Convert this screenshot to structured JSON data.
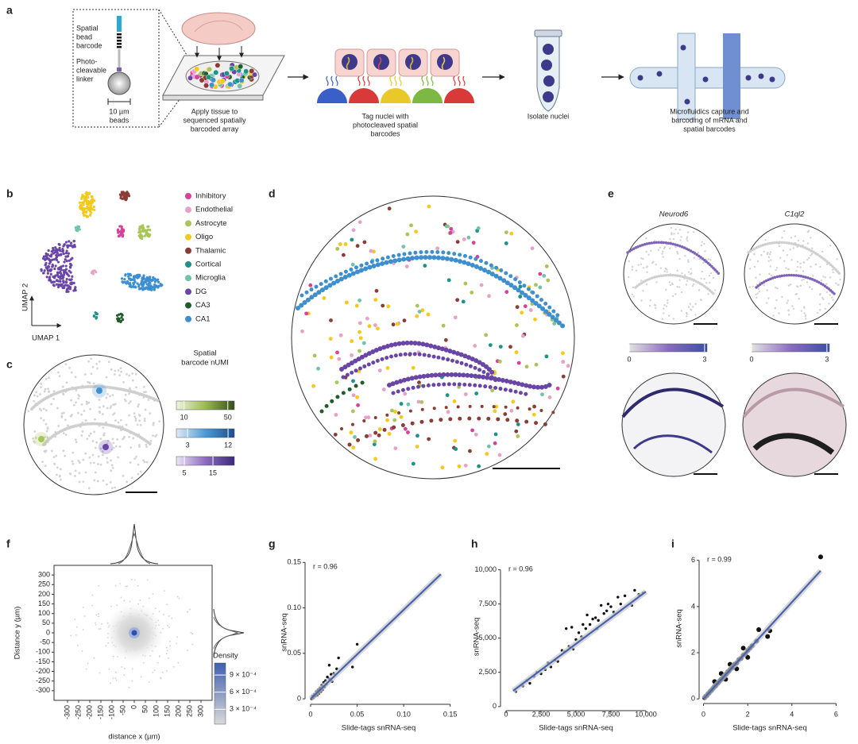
{
  "panel_labels": [
    "a",
    "b",
    "c",
    "d",
    "e",
    "f",
    "g",
    "h",
    "i"
  ],
  "schematic": {
    "bead_barcode": [
      "Spatial",
      "bead",
      "barcode"
    ],
    "linker": [
      "Photo-",
      "cleavable",
      "linker"
    ],
    "bead_size": [
      "10 µm",
      "beads"
    ],
    "steps": [
      [
        "Apply tissue to",
        "sequenced spatially",
        "barcoded array"
      ],
      [
        "Tag nuclei with",
        "photocleaved spatial",
        "barcodes"
      ],
      [
        "Isolate nuclei"
      ],
      [
        "Microfluidics capture and",
        "barcoding of mRNA and",
        "spatial barcodes"
      ]
    ]
  },
  "umap": {
    "x_label": "UMAP 1",
    "y_label": "UMAP 2",
    "legend": [
      {
        "name": "Inhibitory",
        "color": "#d6419a"
      },
      {
        "name": "Endothelial",
        "color": "#e7a1c8"
      },
      {
        "name": "Astrocyte",
        "color": "#a9c55a"
      },
      {
        "name": "Oligo",
        "color": "#f4c91b"
      },
      {
        "name": "Thalamic",
        "color": "#8b3d35"
      },
      {
        "name": "Cortical",
        "color": "#1b938a"
      },
      {
        "name": "Microglia",
        "color": "#6fc3a8"
      },
      {
        "name": "DG",
        "color": "#6a45a8"
      },
      {
        "name": "CA3",
        "color": "#1f5e2b"
      },
      {
        "name": "CA1",
        "color": "#3d8fd0"
      }
    ]
  },
  "spatial_c": {
    "title": [
      "Spatial",
      "barcode nUMI"
    ],
    "colorbars": [
      {
        "colors": [
          "#eef3dc",
          "#9bbb52",
          "#34501a"
        ],
        "lim": [
          3,
          56
        ],
        "ticks": [
          10,
          50
        ]
      },
      {
        "colors": [
          "#dfeaf6",
          "#4d9ad6",
          "#1a4f8c"
        ],
        "lim": [
          0.5,
          13.4
        ],
        "ticks": [
          3,
          12
        ]
      },
      {
        "colors": [
          "#ebe5f3",
          "#8e6cc0",
          "#3d2a7a"
        ],
        "lim": [
          2.2,
          22.5
        ],
        "ticks": [
          5,
          15
        ]
      }
    ]
  },
  "panel_e": {
    "genes": [
      "Neurod6",
      "C1ql2"
    ],
    "colorbars": [
      {
        "colors": [
          "#e2e2e2",
          "#8a6cc0",
          "#3a4fa8"
        ],
        "lim": [
          0,
          3.1
        ],
        "ticks": [
          0,
          3
        ]
      },
      {
        "colors": [
          "#e2e2e2",
          "#8a6cc0",
          "#3a4fa8"
        ],
        "lim": [
          0,
          3.1
        ],
        "ticks": [
          0,
          3
        ]
      }
    ]
  },
  "chart_data": [
    {
      "type": "density",
      "x_label": "distance x (µm)",
      "y_label": "Distance y (µm)",
      "xlim": [
        -350,
        350
      ],
      "ylim": [
        -350,
        350
      ],
      "xticks": [
        -300,
        -250,
        -200,
        -150,
        -100,
        -50,
        0,
        50,
        100,
        150,
        200,
        250,
        300
      ],
      "yticks": [
        300,
        250,
        200,
        150,
        100,
        50,
        0,
        -50,
        -100,
        -150,
        -200,
        -250,
        -300
      ],
      "colorbar": {
        "title": "Density",
        "colors": [
          "#d9d9d9",
          "#3f5fb0"
        ],
        "lim": [
          4e-05,
          0.00111
        ],
        "ticks": [
          {
            "value": 0.0009,
            "label": "9 × 10⁻⁴"
          },
          {
            "value": 0.0006,
            "label": "6 × 10⁻⁴"
          },
          {
            "value": 0.0003,
            "label": "3 × 10⁻⁴"
          }
        ]
      }
    },
    {
      "type": "scatter",
      "x_label": "Slide-tags snRNA-seq",
      "y_label": "snRNA-seq",
      "annotation": "r = 0.96",
      "xlim": [
        -0.006,
        0.152
      ],
      "ylim": [
        -0.006,
        0.152
      ],
      "xticks": [
        0,
        0.05,
        {
          "value": 0.1,
          "label": "0.10"
        },
        0.15
      ],
      "yticks": [
        0,
        0.05,
        {
          "value": 0.1,
          "label": "0.10"
        },
        0.15
      ],
      "color": "#111111",
      "fit_color": "#4763b0",
      "x": [
        0.001,
        0.002,
        0.003,
        0.004,
        0.005,
        0.006,
        0.007,
        0.008,
        0.009,
        0.01,
        0.011,
        0.012,
        0.013,
        0.014,
        0.015,
        0.016,
        0.017,
        0.018,
        0.02,
        0.022,
        0.023,
        0.025,
        0.028,
        0.03,
        0.045,
        0.05,
        0.02
      ],
      "values": [
        0.0,
        0.003,
        0.001,
        0.005,
        0.003,
        0.008,
        0.004,
        0.01,
        0.006,
        0.012,
        0.008,
        0.015,
        0.01,
        0.018,
        0.013,
        0.02,
        0.016,
        0.024,
        0.022,
        0.027,
        0.019,
        0.028,
        0.033,
        0.045,
        0.035,
        0.06,
        0.037
      ],
      "fit": {
        "x": [
          0,
          0.14
        ],
        "values": [
          0,
          0.137
        ]
      }
    },
    {
      "type": "scatter",
      "x_label": "Slide-tags snRNA-seq",
      "y_label": "snRNA-seq",
      "annotation": "r = 0.96",
      "xlim": [
        -400,
        10400
      ],
      "ylim": [
        -300,
        10500
      ],
      "xticks": [
        0,
        {
          "value": 2500,
          "label": "2,500"
        },
        {
          "value": 5000,
          "label": "5,000"
        },
        {
          "value": 7500,
          "label": "7,500"
        },
        {
          "value": 10000,
          "label": "10,000"
        }
      ],
      "yticks": [
        0,
        {
          "value": 2500,
          "label": "2,500"
        },
        {
          "value": 5000,
          "label": "5,000"
        },
        {
          "value": 7500,
          "label": "7,500"
        },
        {
          "value": 10000,
          "label": "10,000"
        }
      ],
      "color": "#111111",
      "fit_color": "#4763b0",
      "x": [
        700,
        1200,
        1500,
        1700,
        2000,
        2200,
        2500,
        2800,
        3000,
        3200,
        3500,
        3700,
        4000,
        4200,
        4300,
        4500,
        4700,
        4800,
        5000,
        5200,
        5400,
        5500,
        5700,
        5800,
        6000,
        6200,
        6400,
        6500,
        6600,
        6800,
        7000,
        7200,
        7300,
        7500,
        7700,
        8000,
        8200,
        8500,
        9000,
        9200,
        9500,
        9800
      ],
      "values": [
        1100,
        1500,
        1900,
        1700,
        2200,
        2500,
        2400,
        2700,
        3200,
        2900,
        3400,
        3300,
        4100,
        4000,
        5700,
        4400,
        5800,
        4200,
        4900,
        5400,
        5100,
        6000,
        5700,
        6700,
        6000,
        6400,
        6500,
        5700,
        6300,
        7400,
        6800,
        7000,
        7500,
        7300,
        6900,
        8000,
        7500,
        8100,
        7400,
        8500,
        8200,
        8300
      ],
      "fit": {
        "x": [
          500,
          10000
        ],
        "values": [
          1150,
          8400
        ]
      }
    },
    {
      "type": "scatter",
      "x_label": "Slide-tags snRNA-seq",
      "y_label": "snRNA-seq",
      "annotation": "r = 0.99",
      "xlim": [
        -0.2,
        6.2
      ],
      "ylim": [
        -0.2,
        6.3
      ],
      "xticks": [
        0,
        2,
        4,
        6
      ],
      "yticks": [
        0,
        2,
        4,
        6
      ],
      "color": "#111111",
      "fit_color": "#4763b0",
      "x": [
        0.05,
        0.1,
        0.15,
        0.2,
        0.25,
        0.3,
        0.35,
        0.4,
        0.45,
        0.5,
        0.55,
        0.6,
        0.65,
        0.7,
        0.75,
        0.8,
        0.85,
        0.9,
        0.95,
        1.0,
        1.05,
        1.1,
        1.15,
        1.2,
        1.3,
        1.4,
        1.5,
        1.6,
        1.7,
        1.8,
        1.9,
        2.0,
        2.1,
        2.2,
        2.4,
        2.5,
        2.9,
        3.0,
        5.3,
        0.5,
        0.8,
        1.0,
        1.2,
        1.5,
        1.8,
        2.0
      ],
      "values": [
        0.05,
        0.12,
        0.14,
        0.22,
        0.25,
        0.33,
        0.36,
        0.42,
        0.48,
        0.55,
        0.56,
        0.65,
        0.68,
        0.74,
        0.8,
        0.85,
        0.88,
        0.96,
        1.0,
        1.05,
        1.1,
        1.18,
        1.2,
        1.28,
        1.35,
        1.5,
        1.55,
        1.7,
        1.75,
        1.9,
        1.95,
        2.1,
        2.2,
        2.3,
        2.5,
        3.0,
        2.7,
        2.95,
        6.15,
        0.75,
        1.1,
        0.85,
        1.5,
        1.3,
        2.2,
        1.8
      ],
      "fit": {
        "x": [
          0,
          5.3
        ],
        "values": [
          0,
          5.55
        ]
      }
    }
  ]
}
